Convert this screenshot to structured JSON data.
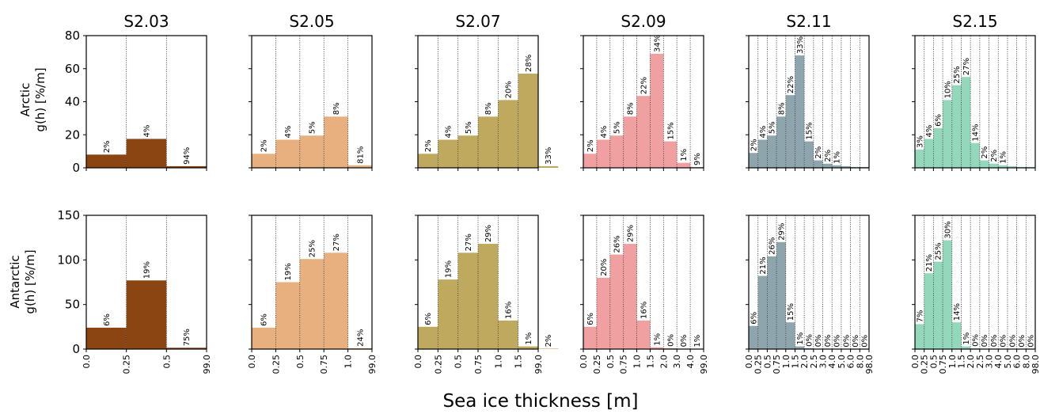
{
  "figure": {
    "xlabel": "Sea ice thickness [m]",
    "row_labels": [
      {
        "line1": "Arctic",
        "line2": "g(h) [%/m]"
      },
      {
        "line1": "Antarctic",
        "line2": "g(h) [%/m]"
      }
    ]
  },
  "chart_data": [
    {
      "type": "bar",
      "title": "S2.03",
      "row": 0,
      "col": 0,
      "color": "#8B4513",
      "ylim": [
        0,
        80
      ],
      "yticks": [
        0,
        20,
        40,
        60,
        80
      ],
      "edges": [
        0.0,
        0.25,
        0.5,
        99.0
      ],
      "xtick_labels": [
        "0.0",
        "0.25",
        "0.5",
        "99.0"
      ],
      "values": [
        8,
        17.5,
        1
      ],
      "labels": [
        "2%",
        "4%",
        "94%"
      ]
    },
    {
      "type": "bar",
      "title": "S2.05",
      "row": 0,
      "col": 1,
      "color": "#E8B07E",
      "ylim": [
        0,
        80
      ],
      "yticks": [
        0,
        20,
        40,
        60,
        80
      ],
      "edges": [
        0.0,
        0.25,
        0.5,
        0.75,
        1.0,
        99.0
      ],
      "xtick_labels": [
        "0.0",
        "0.25",
        "0.5",
        "0.75",
        "1.0",
        "99.0"
      ],
      "values": [
        8.5,
        17,
        19.5,
        31,
        1.5
      ],
      "labels": [
        "2%",
        "4%",
        "5%",
        "8%",
        "81%"
      ]
    },
    {
      "type": "bar",
      "title": "S2.07",
      "row": 0,
      "col": 2,
      "color": "#BFA95E",
      "ylim": [
        0,
        80
      ],
      "yticks": [
        0,
        20,
        40,
        60,
        80
      ],
      "edges": [
        0.0,
        0.25,
        0.5,
        0.75,
        1.0,
        1.5,
        99.0
      ],
      "xtick_labels": [
        "0.0",
        "0.25",
        "0.5",
        "0.75",
        "1.0",
        "1.5",
        "99.0"
      ],
      "values": [
        8.5,
        17,
        19.5,
        31,
        41,
        57,
        1
      ],
      "labels": [
        "2%",
        "4%",
        "5%",
        "8%",
        "20%",
        "28%",
        "33%"
      ]
    },
    {
      "type": "bar",
      "title": "S2.09",
      "row": 0,
      "col": 3,
      "color": "#F0A0A0",
      "ylim": [
        0,
        80
      ],
      "yticks": [
        0,
        20,
        40,
        60,
        80
      ],
      "edges": [
        0.0,
        0.25,
        0.5,
        0.75,
        1.0,
        1.5,
        2.0,
        3.0,
        4.0,
        99.0
      ],
      "xtick_labels": [
        "0.0",
        "0.25",
        "0.5",
        "0.75",
        "1.0",
        "1.5",
        "2.0",
        "3.0",
        "4.0",
        "99.0"
      ],
      "values": [
        8.5,
        17,
        19.5,
        31,
        43.5,
        69,
        16,
        3,
        0.5
      ],
      "labels": [
        "2%",
        "4%",
        "5%",
        "8%",
        "22%",
        "34%",
        "15%",
        "1%",
        "9%"
      ]
    },
    {
      "type": "bar",
      "title": "S2.11",
      "row": 0,
      "col": 4,
      "color": "#8FA5AE",
      "ylim": [
        0,
        80
      ],
      "yticks": [
        0,
        20,
        40,
        60,
        80
      ],
      "edges": [
        0.0,
        0.25,
        0.5,
        0.75,
        1.0,
        1.5,
        2.0,
        2.5,
        3.0,
        4.0,
        5.0,
        6.0,
        8.0,
        98.0
      ],
      "xtick_labels": [
        "0.0",
        "0.25",
        "0.5",
        "0.75",
        "1.0",
        "1.5",
        "2.0",
        "2.5",
        "3.0",
        "4.0",
        "5.0",
        "6.0",
        "8.0",
        "98.0"
      ],
      "values": [
        9,
        17,
        19.5,
        31,
        44,
        68,
        16,
        4.5,
        2.5,
        1.5,
        1,
        0.5,
        0.5
      ],
      "labels": [
        "2%",
        "4%",
        "5%",
        "8%",
        "22%",
        "33%",
        "15%",
        "2%",
        "2%",
        "1%",
        "",
        "",
        ""
      ]
    },
    {
      "type": "bar",
      "title": "S2.15",
      "row": 0,
      "col": 5,
      "color": "#94D8BC",
      "ylim": [
        0,
        80
      ],
      "yticks": [
        0,
        20,
        40,
        60,
        80
      ],
      "edges": [
        0.0,
        0.25,
        0.5,
        0.75,
        1.0,
        1.5,
        2.0,
        2.5,
        3.0,
        4.0,
        5.0,
        6.0,
        8.0,
        98.0
      ],
      "xtick_labels": [
        "0.0",
        "0.25",
        "0.5",
        "0.75",
        "1.0",
        "1.5",
        "2.0",
        "2.5",
        "3.0",
        "4.0",
        "5.0",
        "6.0",
        "8.0",
        "98.0"
      ],
      "values": [
        11,
        17.5,
        24,
        41,
        50,
        55,
        15,
        4.5,
        2.5,
        1.5,
        1,
        0.5,
        0.5
      ],
      "labels": [
        "3%",
        "4%",
        "6%",
        "10%",
        "25%",
        "27%",
        "14%",
        "2%",
        "2%",
        "1%",
        "",
        "",
        ""
      ]
    },
    {
      "type": "bar",
      "title": "",
      "row": 1,
      "col": 0,
      "color": "#8B4513",
      "ylim": [
        0,
        150
      ],
      "yticks": [
        0,
        50,
        100,
        150
      ],
      "edges": [
        0.0,
        0.25,
        0.5,
        99.0
      ],
      "xtick_labels": [
        "0.0",
        "0.25",
        "0.5",
        "99.0"
      ],
      "values": [
        24,
        77,
        1.5
      ],
      "labels": [
        "6%",
        "19%",
        "75%"
      ]
    },
    {
      "type": "bar",
      "title": "",
      "row": 1,
      "col": 1,
      "color": "#E8B07E",
      "ylim": [
        0,
        150
      ],
      "yticks": [
        0,
        50,
        100,
        150
      ],
      "edges": [
        0.0,
        0.25,
        0.5,
        0.75,
        1.0,
        99.0
      ],
      "xtick_labels": [
        "0.0",
        "0.25",
        "0.5",
        "0.75",
        "1.0",
        "99.0"
      ],
      "values": [
        24,
        75,
        101,
        108,
        1
      ],
      "labels": [
        "6%",
        "19%",
        "25%",
        "27%",
        "24%"
      ]
    },
    {
      "type": "bar",
      "title": "",
      "row": 1,
      "col": 2,
      "color": "#BFA95E",
      "ylim": [
        0,
        150
      ],
      "yticks": [
        0,
        50,
        100,
        150
      ],
      "edges": [
        0.0,
        0.25,
        0.5,
        0.75,
        1.0,
        1.5,
        99.0
      ],
      "xtick_labels": [
        "0.0",
        "0.25",
        "0.5",
        "0.75",
        "1.0",
        "1.5",
        "99.0"
      ],
      "values": [
        25,
        78,
        108,
        118,
        32,
        3,
        0.5
      ],
      "labels": [
        "6%",
        "19%",
        "27%",
        "29%",
        "16%",
        "1%",
        "2%"
      ]
    },
    {
      "type": "bar",
      "title": "",
      "row": 1,
      "col": 3,
      "color": "#F0A0A0",
      "ylim": [
        0,
        150
      ],
      "yticks": [
        0,
        50,
        100,
        150
      ],
      "edges": [
        0.0,
        0.25,
        0.5,
        0.75,
        1.0,
        1.5,
        2.0,
        3.0,
        4.0,
        99.0
      ],
      "xtick_labels": [
        "0.0",
        "0.25",
        "0.5",
        "0.75",
        "1.0",
        "1.5",
        "2.0",
        "3.0",
        "4.0",
        "99.0"
      ],
      "values": [
        25,
        80,
        106,
        118,
        32,
        2,
        1,
        0.5,
        0.3
      ],
      "labels": [
        "6%",
        "20%",
        "26%",
        "29%",
        "16%",
        "1%",
        "0%",
        "0%",
        "1%"
      ]
    },
    {
      "type": "bar",
      "title": "",
      "row": 1,
      "col": 4,
      "color": "#8FA5AE",
      "ylim": [
        0,
        150
      ],
      "yticks": [
        0,
        50,
        100,
        150
      ],
      "edges": [
        0.0,
        0.25,
        0.5,
        0.75,
        1.0,
        1.5,
        2.0,
        2.5,
        3.0,
        4.0,
        5.0,
        6.0,
        8.0,
        98.0
      ],
      "xtick_labels": [
        "0.0",
        "0.25",
        "0.5",
        "0.75",
        "1.0",
        "1.5",
        "2.0",
        "2.5",
        "3.0",
        "4.0",
        "5.0",
        "6.0",
        "8.0",
        "98.0"
      ],
      "values": [
        26,
        82,
        104,
        120,
        30,
        3,
        1,
        0.5,
        0.5,
        0.3,
        0.3,
        0.2,
        0.2
      ],
      "labels": [
        "6%",
        "21%",
        "26%",
        "29%",
        "15%",
        "1%",
        "0%",
        "0%",
        "0%",
        "0%",
        "0%",
        "0%",
        "0%"
      ]
    },
    {
      "type": "bar",
      "title": "",
      "row": 1,
      "col": 5,
      "color": "#94D8BC",
      "ylim": [
        0,
        150
      ],
      "yticks": [
        0,
        50,
        100,
        150
      ],
      "edges": [
        0.0,
        0.25,
        0.5,
        0.75,
        1.0,
        1.5,
        2.0,
        2.5,
        3.0,
        4.0,
        5.0,
        6.0,
        8.0,
        98.0
      ],
      "xtick_labels": [
        "0.0",
        "0.25",
        "0.5",
        "0.75",
        "1.0",
        "1.5",
        "2.0",
        "2.5",
        "3.0",
        "4.0",
        "5.0",
        "6.0",
        "8.0",
        "98.0"
      ],
      "values": [
        28,
        85,
        98,
        122,
        30,
        3,
        1,
        0.5,
        0.5,
        0.3,
        0.3,
        0.2,
        0.2
      ],
      "labels": [
        "7%",
        "21%",
        "25%",
        "30%",
        "14%",
        "1%",
        "0%",
        "0%",
        "0%",
        "0%",
        "0%",
        "0%",
        "0%"
      ]
    }
  ]
}
